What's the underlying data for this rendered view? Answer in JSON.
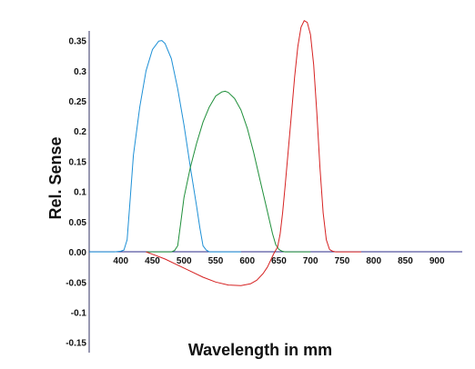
{
  "chart_data": {
    "type": "line",
    "xlabel": "Wavelength in mm",
    "ylabel": "Rel. Sense",
    "xlim": [
      350,
      940
    ],
    "ylim": [
      -0.155,
      0.375
    ],
    "x_ticks": [
      400,
      450,
      500,
      550,
      600,
      650,
      700,
      750,
      800,
      850,
      900
    ],
    "x_tick_labels": [
      "400",
      "450",
      "500",
      "550",
      "600",
      "650",
      "700",
      "750",
      "800",
      "850",
      "900"
    ],
    "y_ticks": [
      0.35,
      0.3,
      0.25,
      0.2,
      0.15,
      0.1,
      0.05,
      0.0,
      -0.05,
      -0.1,
      -0.15
    ],
    "y_tick_labels": [
      "0.35",
      "0.3",
      "0.25",
      "0.2",
      "0.15",
      "0.1",
      "0.05",
      "0.00",
      "-0.05",
      "-0.1",
      "-0.15"
    ],
    "grid": false,
    "legend": false,
    "colors": {
      "axes": "#333366",
      "zero_line": "#2b2b8a"
    },
    "series": [
      {
        "color": "#1e90d6",
        "x": [
          350,
          390,
          400,
          405,
          410,
          415,
          420,
          430,
          440,
          450,
          460,
          465,
          470,
          480,
          490,
          500,
          510,
          520,
          525,
          530,
          535,
          540,
          550,
          570,
          590
        ],
        "y": [
          0.0,
          0.0,
          0.001,
          0.003,
          0.02,
          0.09,
          0.16,
          0.24,
          0.3,
          0.335,
          0.349,
          0.35,
          0.345,
          0.32,
          0.27,
          0.21,
          0.14,
          0.075,
          0.04,
          0.01,
          0.003,
          0.0,
          0.0,
          0.0,
          0.0
        ]
      },
      {
        "color": "#1f8f3a",
        "x": [
          440,
          480,
          485,
          490,
          495,
          500,
          510,
          520,
          530,
          540,
          550,
          560,
          565,
          570,
          580,
          590,
          600,
          610,
          620,
          630,
          640,
          645,
          650,
          655,
          660,
          680,
          700
        ],
        "y": [
          0.0,
          0.0,
          0.002,
          0.01,
          0.05,
          0.09,
          0.14,
          0.18,
          0.215,
          0.24,
          0.258,
          0.265,
          0.266,
          0.264,
          0.254,
          0.235,
          0.205,
          0.165,
          0.12,
          0.075,
          0.03,
          0.012,
          0.004,
          0.001,
          0.0,
          0.0,
          0.0
        ]
      },
      {
        "color": "#d62222",
        "x": [
          440,
          450,
          470,
          490,
          510,
          530,
          550,
          570,
          590,
          605,
          615,
          625,
          632,
          638,
          642,
          648,
          652,
          656,
          660,
          665,
          670,
          675,
          680,
          685,
          690,
          695,
          700,
          705,
          710,
          715,
          720,
          725,
          730,
          735,
          740,
          760,
          780
        ],
        "y": [
          0.0,
          -0.004,
          -0.012,
          -0.022,
          -0.032,
          -0.042,
          -0.05,
          -0.055,
          -0.056,
          -0.053,
          -0.047,
          -0.036,
          -0.025,
          -0.012,
          -0.003,
          0.008,
          0.03,
          0.065,
          0.11,
          0.17,
          0.23,
          0.29,
          0.34,
          0.372,
          0.383,
          0.38,
          0.36,
          0.31,
          0.23,
          0.14,
          0.065,
          0.02,
          0.004,
          0.001,
          0.0,
          0.0,
          0.0
        ]
      }
    ]
  }
}
